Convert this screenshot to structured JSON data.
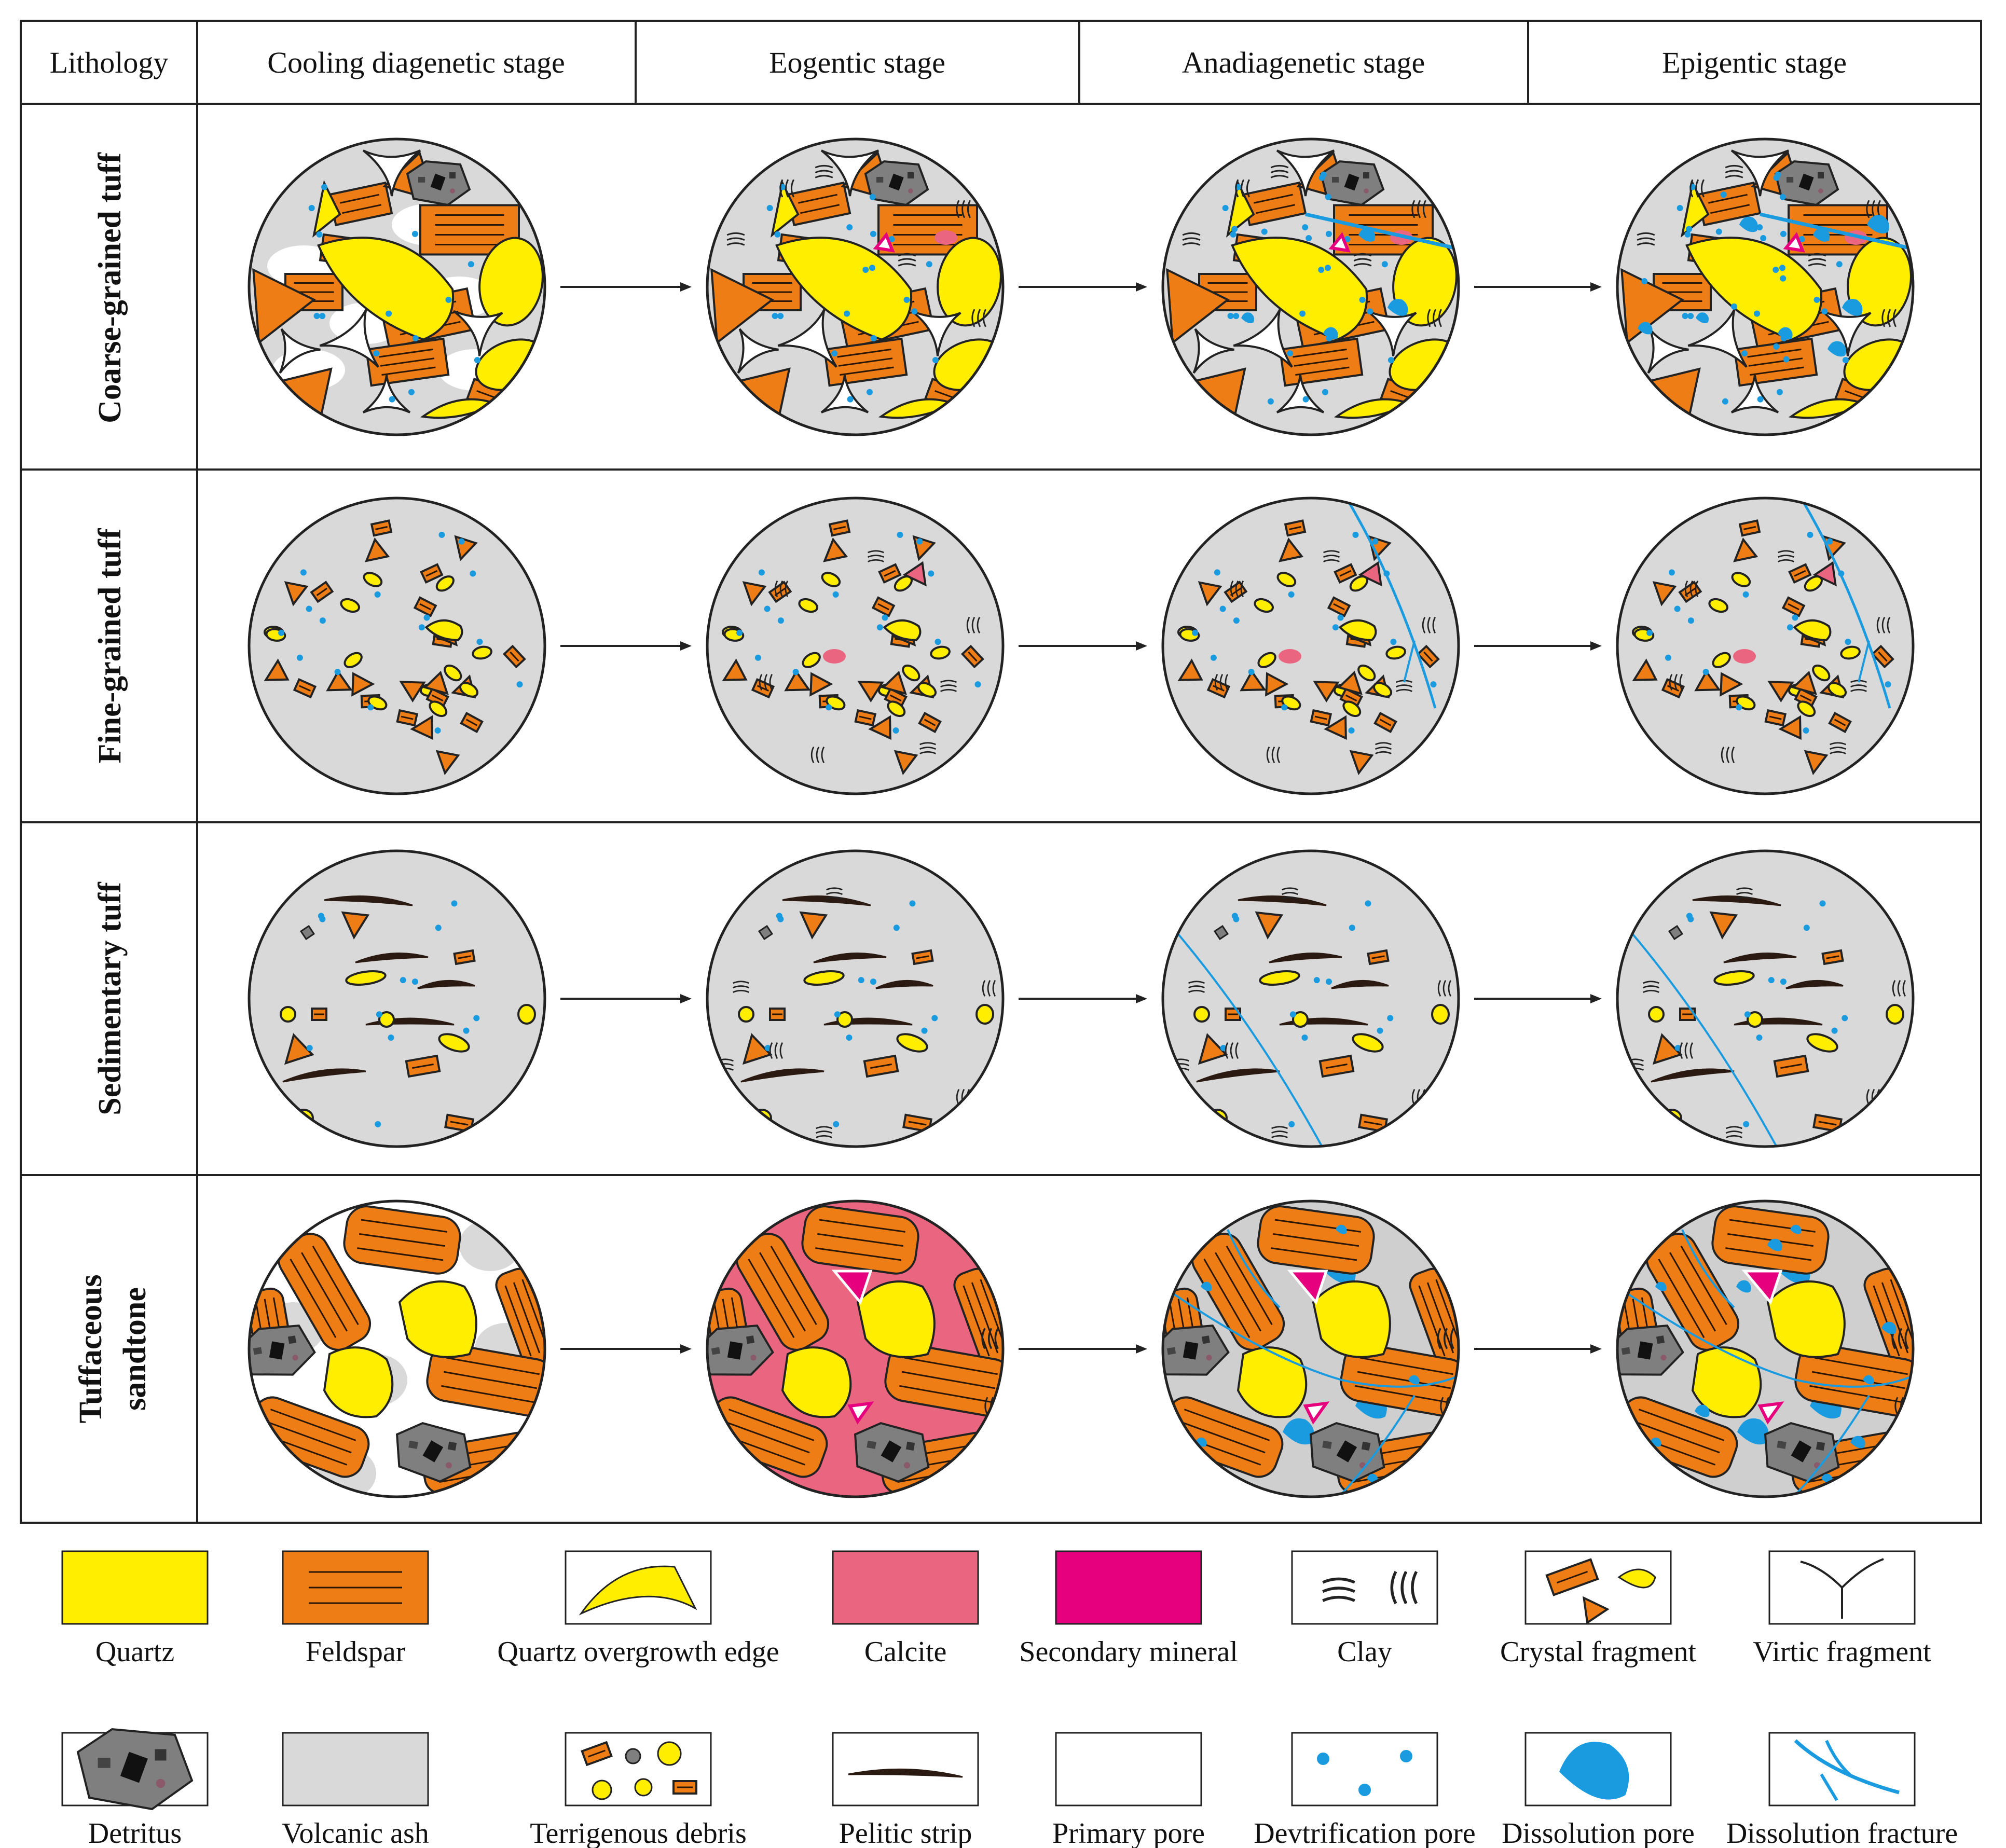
{
  "header": {
    "lithology": "Lithology",
    "stages": [
      "Cooling diagenetic stage",
      "Eogentic stage",
      "Anadiagenetic stage",
      "Epigentic stage"
    ]
  },
  "rows": [
    {
      "label_lines": [
        "Coarse-grained tuff"
      ],
      "type": "coarse"
    },
    {
      "label_lines": [
        "Fine-grained tuff"
      ],
      "type": "fine"
    },
    {
      "label_lines": [
        "Sedimentary tuff"
      ],
      "type": "sed"
    },
    {
      "label_lines": [
        "Tuffaceous",
        "sandtone"
      ],
      "type": "sand"
    }
  ],
  "legend": [
    {
      "label": "Quartz",
      "icon": "quartz-swatch"
    },
    {
      "label": "Feldspar",
      "icon": "feldspar-swatch"
    },
    {
      "label": "Quartz overgrowth edge",
      "icon": "overgrowth-icon"
    },
    {
      "label": "Calcite",
      "icon": "calcite-swatch"
    },
    {
      "label": "Secondary mineral",
      "icon": "secondary-mineral-swatch"
    },
    {
      "label": "Clay",
      "icon": "clay-icon"
    },
    {
      "label": "Crystal fragment",
      "icon": "crystal-fragment-icon"
    },
    {
      "label": "Virtic fragment",
      "icon": "virtic-fragment-icon"
    },
    {
      "label": "Detritus",
      "icon": "detritus-icon"
    },
    {
      "label": "Volcanic ash",
      "icon": "volcanic-ash-swatch"
    },
    {
      "label": "Terrigenous debris",
      "icon": "terrigenous-debris-icon"
    },
    {
      "label": "Pelitic strip",
      "icon": "pelitic-strip-icon"
    },
    {
      "label": "Primary pore",
      "icon": "primary-pore-swatch"
    },
    {
      "label": "Devtrification pore",
      "icon": "devitrification-pore-icon"
    },
    {
      "label": "Dissolution pore",
      "icon": "dissolution-pore-icon"
    },
    {
      "label": "Dissolution fracture",
      "icon": "dissolution-fracture-icon"
    }
  ],
  "colors": {
    "quartz": "#ffee00",
    "feldspar": "#ee7d16",
    "calcite": "#ea6680",
    "secondary": "#e6007e",
    "ash": "#d9d9d9",
    "pore_blue": "#1a9be0",
    "detritus": "#7f7f7f",
    "pelitic": "#2b1a12"
  }
}
